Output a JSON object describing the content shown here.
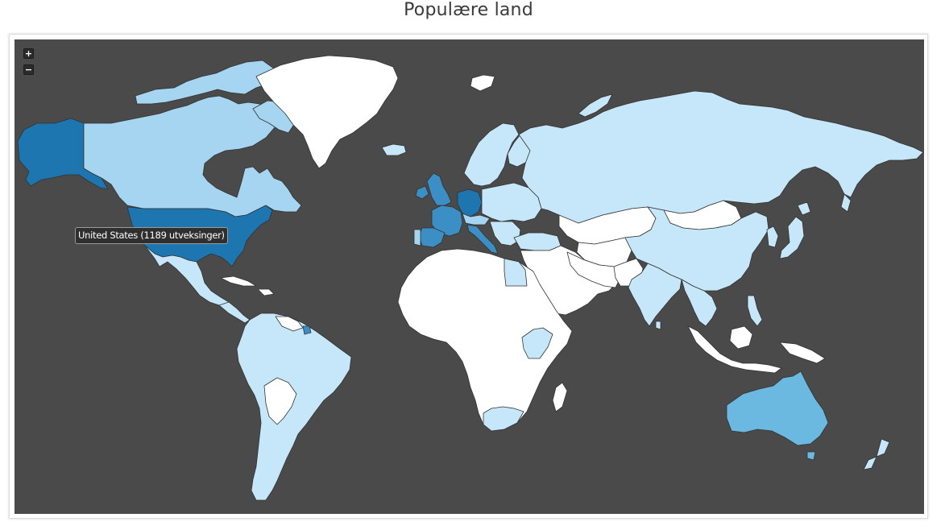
{
  "page": {
    "title": "Populære land"
  },
  "map": {
    "zoom_in_label": "+",
    "zoom_out_label": "−",
    "tooltip": "United States (1189 utveksinger)",
    "colors": {
      "ocean": "#4a4a4a",
      "no_data": "#ffffff",
      "level_1": "#c6e7f9",
      "level_2": "#a5d5f0",
      "level_3": "#6bb8e0",
      "level_4": "#3b8fc4",
      "level_5": "#1e76b0",
      "border": "#333333"
    },
    "regions": [
      {
        "name": "Alaska",
        "level": 5
      },
      {
        "name": "Canada",
        "level": 2
      },
      {
        "name": "Greenland",
        "level": 0
      },
      {
        "name": "United States",
        "level": 5
      },
      {
        "name": "Mexico",
        "level": 1
      },
      {
        "name": "South America",
        "level": 1
      },
      {
        "name": "Iceland",
        "level": 1
      },
      {
        "name": "Scandinavia",
        "level": 1
      },
      {
        "name": "Russia",
        "level": 1
      },
      {
        "name": "United Kingdom",
        "level": 4
      },
      {
        "name": "France",
        "level": 4
      },
      {
        "name": "Spain",
        "level": 4
      },
      {
        "name": "Germany",
        "level": 5
      },
      {
        "name": "Italy",
        "level": 4
      },
      {
        "name": "Africa",
        "level": 0
      },
      {
        "name": "South Africa",
        "level": 1
      },
      {
        "name": "Middle East",
        "level": 0
      },
      {
        "name": "China",
        "level": 1
      },
      {
        "name": "India",
        "level": 1
      },
      {
        "name": "Southeast Asia",
        "level": 1
      },
      {
        "name": "Japan",
        "level": 1
      },
      {
        "name": "Australia",
        "level": 3
      },
      {
        "name": "New Zealand",
        "level": 1
      }
    ]
  }
}
